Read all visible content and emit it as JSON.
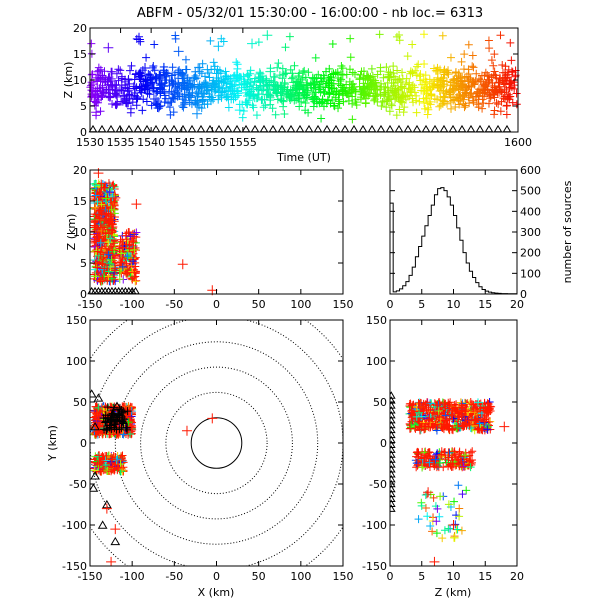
{
  "chart_data": [
    {
      "type": "scatter",
      "panel": "time-height",
      "title": "ABFM - 05/32/01 15:30:00 - 16:00:00 - nb loc.=    6313",
      "xlabel": "Time (UT)",
      "ylabel": "Z (km)",
      "xlim": [
        1530,
        1600
      ],
      "ylim": [
        0,
        20
      ],
      "xticks": [
        "1530",
        "1535",
        "1540",
        "1545",
        "1550",
        "1555",
        "1600"
      ],
      "yticks": [
        "0",
        "5",
        "10",
        "15",
        "20"
      ],
      "color_scale": "rainbow by time (purple at 1530 to red at 1600)",
      "source_band": {
        "z_center_km": 8.5,
        "z_spread_km": 2.0
      },
      "sample_points": [
        {
          "t": 1530.5,
          "z": 9.2
        },
        {
          "t": 1531.2,
          "z": 7.8
        },
        {
          "t": 1532.0,
          "z": 10.5
        },
        {
          "t": 1533.1,
          "z": 8.1
        },
        {
          "t": 1534.4,
          "z": 11.2
        },
        {
          "t": 1535.2,
          "z": 9.0
        },
        {
          "t": 1536.0,
          "z": 6.5
        },
        {
          "t": 1537.3,
          "z": 10.1
        },
        {
          "t": 1538.1,
          "z": 8.4
        },
        {
          "t": 1539.0,
          "z": 12.3
        },
        {
          "t": 1540.2,
          "z": 9.6
        },
        {
          "t": 1541.5,
          "z": 7.4
        },
        {
          "t": 1542.3,
          "z": 10.8
        },
        {
          "t": 1543.0,
          "z": 8.9
        },
        {
          "t": 1544.4,
          "z": 11.5
        },
        {
          "t": 1545.1,
          "z": 9.3
        },
        {
          "t": 1546.2,
          "z": 7.0
        },
        {
          "t": 1547.0,
          "z": 10.2
        },
        {
          "t": 1548.3,
          "z": 8.6
        },
        {
          "t": 1549.2,
          "z": 12.0
        },
        {
          "t": 1550.0,
          "z": 9.1
        },
        {
          "t": 1551.4,
          "z": 7.6
        },
        {
          "t": 1552.1,
          "z": 10.6
        },
        {
          "t": 1553.3,
          "z": 8.3
        },
        {
          "t": 1554.0,
          "z": 11.0
        },
        {
          "t": 1555.2,
          "z": 9.4
        },
        {
          "t": 1556.1,
          "z": 7.2
        },
        {
          "t": 1557.0,
          "z": 10.3
        },
        {
          "t": 1558.4,
          "z": 8.7
        },
        {
          "t": 1559.5,
          "z": 11.6
        },
        {
          "t": 1538.0,
          "z": 17.8
        },
        {
          "t": 1551.0,
          "z": 16.5
        },
        {
          "t": 1559.0,
          "z": 18.6
        },
        {
          "t": 1533.0,
          "z": 16.2
        },
        {
          "t": 1544.5,
          "z": 15.5
        },
        {
          "t": 1556.5,
          "z": 17.0
        },
        {
          "t": 1531.0,
          "z": 3.8
        },
        {
          "t": 1547.5,
          "z": 3.5
        },
        {
          "t": 1554.5,
          "z": 4.2
        }
      ],
      "ground_stations": "triangles along Z = 0 across the full time span"
    },
    {
      "type": "scatter",
      "panel": "x-height",
      "xlabel": "",
      "ylabel": "Z (km)",
      "xlim": [
        -150,
        150
      ],
      "ylim": [
        0,
        20
      ],
      "xticks": [
        "-150",
        "-100",
        "-50",
        "0",
        "50",
        "100",
        "150"
      ],
      "yticks": [
        "0",
        "5",
        "10",
        "15",
        "20"
      ],
      "main_cluster": {
        "x_km": [
          -145,
          -120
        ],
        "z_km": [
          2,
          18
        ]
      },
      "secondary_cluster": {
        "x_km": [
          -115,
          -95
        ],
        "z_km": [
          2,
          10
        ]
      },
      "outliers": [
        {
          "x": -120,
          "z": 15.5
        },
        {
          "x": -95,
          "z": 14.5
        },
        {
          "x": -40,
          "z": 4.8
        },
        {
          "x": -5,
          "z": 0.6
        },
        {
          "x": -140,
          "z": 19.5
        }
      ]
    },
    {
      "type": "histogram",
      "panel": "height-distribution",
      "xlabel": "",
      "ylabel": "number of sources",
      "xlim": [
        0,
        20
      ],
      "ylim": [
        0,
        600
      ],
      "xticks": [
        "0",
        "5",
        "10",
        "15",
        "20"
      ],
      "yticks": [
        "0",
        "100",
        "200",
        "300",
        "400",
        "500",
        "600"
      ],
      "bin_width_km": 0.5,
      "bin_start_km": 0,
      "counts": [
        440,
        10,
        15,
        25,
        40,
        60,
        90,
        130,
        180,
        230,
        280,
        330,
        380,
        430,
        480,
        510,
        515,
        500,
        470,
        430,
        380,
        320,
        260,
        200,
        150,
        110,
        80,
        55,
        35,
        22,
        14,
        9,
        6,
        4,
        3,
        2,
        2,
        1,
        1,
        1
      ]
    },
    {
      "type": "scatter",
      "panel": "plan-view",
      "xlabel": "X (km)",
      "ylabel": "Y (km)",
      "xlim": [
        -150,
        150
      ],
      "ylim": [
        -150,
        150
      ],
      "xticks": [
        "-150",
        "-100",
        "-50",
        "0",
        "50",
        "100",
        "150"
      ],
      "yticks": [
        "-150",
        "-100",
        "-50",
        "0",
        "50",
        "100",
        "150"
      ],
      "range_rings_km": [
        30,
        60,
        90,
        120,
        150,
        180
      ],
      "main_cluster": {
        "x_km": [
          -145,
          -100
        ],
        "y_km": [
          10,
          45
        ]
      },
      "south_cluster": {
        "x_km": [
          -145,
          -110
        ],
        "y_km": [
          -35,
          -15
        ]
      },
      "outliers": [
        {
          "x": -125,
          "y": -145
        },
        {
          "x": -120,
          "y": -105
        },
        {
          "x": -130,
          "y": -80
        },
        {
          "x": -5,
          "y": 30
        },
        {
          "x": -35,
          "y": 15
        }
      ]
    },
    {
      "type": "scatter",
      "panel": "height-y",
      "xlabel": "Z (km)",
      "ylabel": "",
      "xlim": [
        0,
        20
      ],
      "ylim": [
        -150,
        150
      ],
      "xticks": [
        "0",
        "5",
        "10",
        "15",
        "20"
      ],
      "yticks": [
        "-150",
        "-100",
        "-50",
        "0",
        "50",
        "100",
        "150"
      ],
      "north_cluster": {
        "z_km": [
          3,
          16
        ],
        "y_km": [
          15,
          50
        ]
      },
      "south_cluster": {
        "z_km": [
          4,
          13
        ],
        "y_km": [
          -30,
          -10
        ]
      },
      "outliers": [
        {
          "z": 7,
          "y": -145
        },
        {
          "z": 10,
          "y": -100
        },
        {
          "z": 18,
          "y": 20
        },
        {
          "z": 6,
          "y": -60
        }
      ]
    }
  ]
}
